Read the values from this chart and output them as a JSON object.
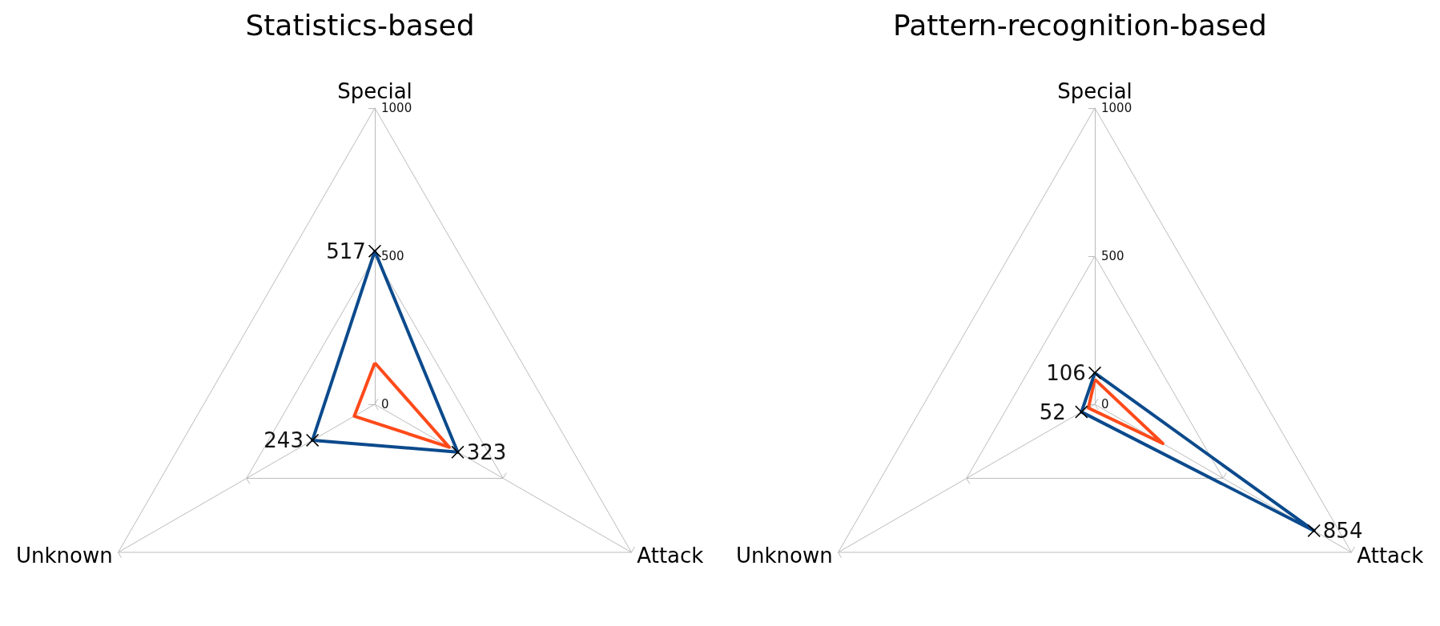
{
  "chart_data": [
    {
      "type": "radar",
      "title": "Statistics-based",
      "categories": [
        "Special",
        "Attack",
        "Unknown"
      ],
      "ylim": [
        0,
        1000
      ],
      "yticks": [
        0,
        500,
        1000
      ],
      "grid": true,
      "series": [
        {
          "color": "#0b4a8c",
          "values": [
            517,
            323,
            243
          ],
          "marker": "cross",
          "value_labels": [
            "517",
            "323",
            "243"
          ]
        },
        {
          "color": "#ff4a1a",
          "values": [
            140,
            290,
            80
          ],
          "marker": "none"
        }
      ]
    },
    {
      "type": "radar",
      "title": "Pattern-recognition-based",
      "categories": [
        "Special",
        "Attack",
        "Unknown"
      ],
      "ylim": [
        0,
        1000
      ],
      "yticks": [
        0,
        500,
        1000
      ],
      "grid": true,
      "series": [
        {
          "color": "#0b4a8c",
          "values": [
            106,
            854,
            52
          ],
          "marker": "cross",
          "value_labels": [
            "106",
            "854",
            "52"
          ]
        },
        {
          "color": "#ff4a1a",
          "values": [
            84,
            265,
            25
          ],
          "marker": "none"
        }
      ]
    }
  ]
}
